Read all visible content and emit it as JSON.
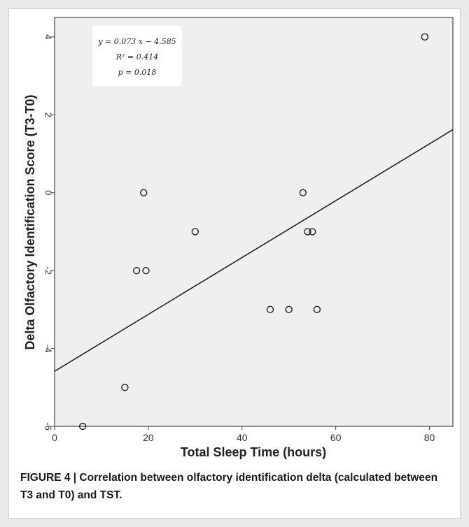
{
  "chart_data": {
    "type": "scatter",
    "xlabel": "Total Sleep Time (hours)",
    "ylabel": "Delta Olfactory Identification Score (T3-T0)",
    "xlim": [
      0,
      85
    ],
    "ylim": [
      -6,
      4.5
    ],
    "x_ticks": [
      0,
      20,
      40,
      60,
      80
    ],
    "y_ticks": [
      -6,
      -4,
      -2,
      0,
      2,
      4
    ],
    "y_tick_labels": [
      "-6",
      "-4",
      "-2",
      "0",
      "2",
      "4"
    ],
    "points": [
      {
        "x": 6,
        "y": -6
      },
      {
        "x": 15,
        "y": -5
      },
      {
        "x": 17.5,
        "y": -2
      },
      {
        "x": 19,
        "y": 0
      },
      {
        "x": 19.5,
        "y": -2
      },
      {
        "x": 30,
        "y": -1
      },
      {
        "x": 46,
        "y": -3
      },
      {
        "x": 50,
        "y": -3
      },
      {
        "x": 53,
        "y": 0
      },
      {
        "x": 54,
        "y": -1
      },
      {
        "x": 55,
        "y": -1
      },
      {
        "x": 56,
        "y": -3
      },
      {
        "x": 79,
        "y": 4
      }
    ],
    "fit_line": {
      "slope": 0.073,
      "intercept": -4.585
    },
    "annotations": [
      "y = 0.073 x − 4.585",
      "R² = 0.414",
      "p = 0.018"
    ],
    "grid": false,
    "plot_background": "#efefef"
  },
  "caption": "FIGURE 4 | Correlation between olfactory identification delta (calculated between T3 and T0) and TST."
}
